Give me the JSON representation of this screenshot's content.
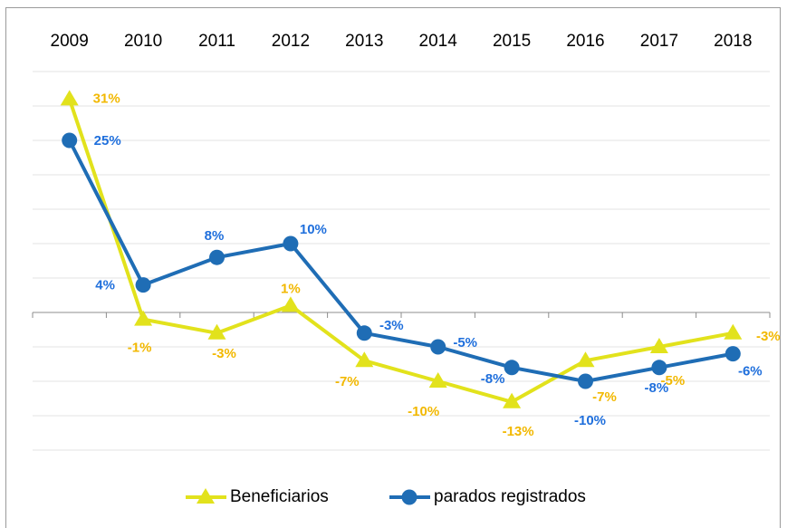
{
  "chart_data": {
    "type": "line",
    "categories": [
      "2009",
      "2010",
      "2011",
      "2012",
      "2013",
      "2014",
      "2015",
      "2016",
      "2017",
      "2018"
    ],
    "series": [
      {
        "name": "Beneficiarios",
        "color": "#e2e21c",
        "label_color": "#f2b800",
        "marker": "triangle",
        "values": [
          31,
          -1,
          -3,
          1,
          -7,
          -10,
          -13,
          -7,
          -5,
          -3
        ],
        "value_labels": [
          "31%",
          "-1%",
          "-3%",
          "1%",
          "-7%",
          "-10%",
          "-13%",
          "-7%",
          "-5%",
          "-3%"
        ]
      },
      {
        "name": "parados registrados",
        "color": "#1f6db5",
        "label_color": "#1f6fdc",
        "marker": "circle",
        "values": [
          25,
          4,
          8,
          10,
          -3,
          -5,
          -8,
          -10,
          -8,
          -6
        ],
        "value_labels": [
          "25%",
          "4%",
          "8%",
          "10%",
          "-3%",
          "-5%",
          "-8%",
          "-10%",
          "-8%",
          "-6%"
        ]
      }
    ],
    "ylim": [
      -20,
      35
    ],
    "yticks": [
      -20,
      -15,
      -10,
      -5,
      0,
      5,
      10,
      15,
      20,
      25,
      30,
      35
    ],
    "grid": true,
    "legend": "bottom"
  }
}
